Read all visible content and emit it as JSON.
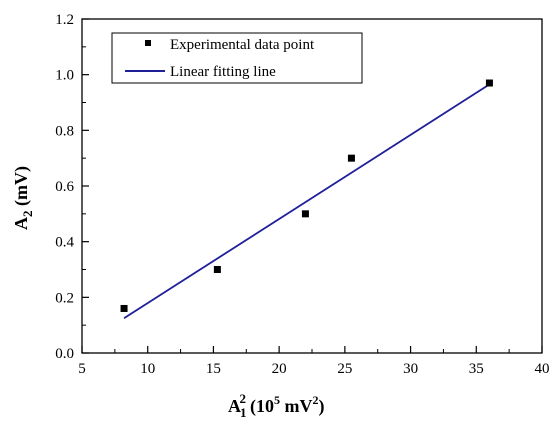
{
  "chart_data": {
    "type": "scatter",
    "xlabel": {
      "base": "A",
      "sub": "1",
      "sup": "2",
      "paren_open": "(10",
      "paren_sup": "5",
      "unit": " mV",
      "unit_sup": "2",
      "paren_close": ")"
    },
    "ylabel": {
      "base": "A",
      "sub": "2",
      "unit": " (mV)"
    },
    "xlim": [
      5,
      40
    ],
    "ylim": [
      0.0,
      1.2
    ],
    "xticks": [
      5,
      10,
      15,
      20,
      25,
      30,
      35,
      40
    ],
    "yticks": [
      0.0,
      0.2,
      0.4,
      0.6,
      0.8,
      1.0,
      1.2
    ],
    "xtick_labels": [
      "5",
      "10",
      "15",
      "20",
      "25",
      "30",
      "35",
      "40"
    ],
    "ytick_labels": [
      "0.0",
      "0.2",
      "0.4",
      "0.6",
      "0.8",
      "1.0",
      "1.2"
    ],
    "grid": false,
    "legend_position": "top-left",
    "series": [
      {
        "name": "Experimental data point",
        "kind": "markers",
        "marker": "square",
        "color": "#000000",
        "x": [
          8.2,
          15.3,
          22.0,
          25.5,
          36.0
        ],
        "y": [
          0.16,
          0.3,
          0.5,
          0.7,
          0.97
        ]
      },
      {
        "name": "Linear fitting line",
        "kind": "line",
        "color": "#1f1f9a",
        "x": [
          8.2,
          36.0
        ],
        "y": [
          0.125,
          0.965
        ]
      }
    ]
  }
}
